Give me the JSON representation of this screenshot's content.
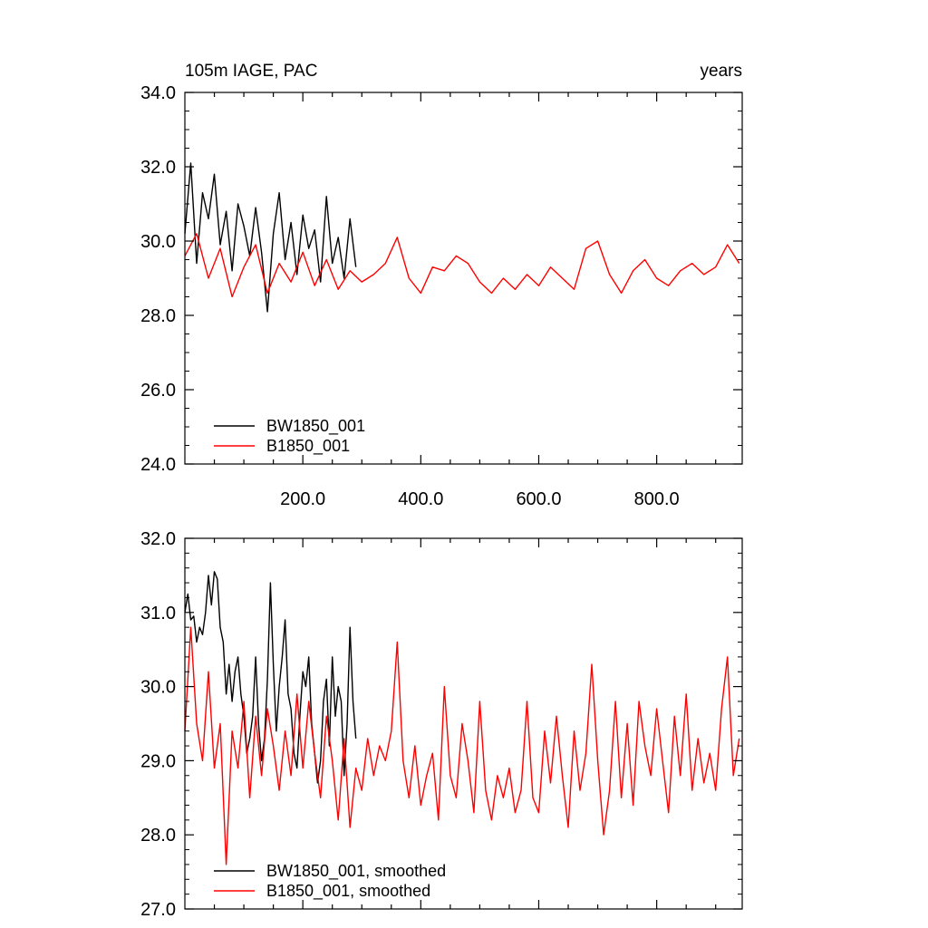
{
  "chart_data": [
    {
      "type": "line",
      "title": "105m IAGE, PAC",
      "xlabel": "years",
      "ylabel": "",
      "xlim": [
        0,
        945
      ],
      "ylim": [
        24.0,
        34.0
      ],
      "yticks": [
        "34.0",
        "32.0",
        "30.0",
        "28.0",
        "26.0",
        "24.0"
      ],
      "xticks": [
        "200.0",
        "400.0",
        "600.0",
        "800.0"
      ],
      "legend_position": "bottom-left",
      "series": [
        {
          "name": "BW1850_001",
          "color": "#000000",
          "x": [
            0,
            10,
            20,
            30,
            40,
            50,
            60,
            70,
            80,
            90,
            100,
            110,
            120,
            130,
            140,
            150,
            160,
            170,
            180,
            190,
            200,
            210,
            220,
            230,
            240,
            250,
            260,
            270,
            280,
            290
          ],
          "y": [
            30.2,
            32.1,
            29.4,
            31.3,
            30.6,
            31.8,
            29.9,
            30.8,
            29.2,
            31.0,
            30.4,
            29.6,
            30.9,
            29.7,
            28.1,
            30.2,
            31.3,
            29.5,
            30.5,
            29.1,
            30.7,
            29.8,
            30.3,
            28.9,
            31.2,
            29.4,
            30.1,
            29.0,
            30.6,
            29.3
          ]
        },
        {
          "name": "B1850_001",
          "color": "#ff0000",
          "x": [
            0,
            20,
            40,
            60,
            80,
            100,
            120,
            140,
            160,
            180,
            200,
            220,
            240,
            260,
            280,
            300,
            320,
            340,
            360,
            380,
            400,
            420,
            440,
            460,
            480,
            500,
            520,
            540,
            560,
            580,
            600,
            620,
            640,
            660,
            680,
            700,
            720,
            740,
            760,
            780,
            800,
            820,
            840,
            860,
            880,
            900,
            920,
            940
          ],
          "y": [
            29.6,
            30.2,
            29.0,
            29.8,
            28.5,
            29.3,
            29.9,
            28.6,
            29.4,
            28.9,
            29.7,
            28.8,
            29.5,
            28.7,
            29.2,
            28.9,
            29.1,
            29.4,
            30.1,
            29.0,
            28.6,
            29.3,
            29.2,
            29.6,
            29.4,
            28.9,
            28.6,
            29.0,
            28.7,
            29.1,
            28.8,
            29.3,
            29.0,
            28.7,
            29.8,
            30.0,
            29.1,
            28.6,
            29.2,
            29.5,
            29.0,
            28.8,
            29.2,
            29.4,
            29.1,
            29.3,
            29.9,
            29.4
          ]
        }
      ]
    },
    {
      "type": "line",
      "title": "",
      "xlabel": "",
      "ylabel": "",
      "xlim": [
        0,
        945
      ],
      "ylim": [
        27.0,
        32.0
      ],
      "yticks": [
        "32.0",
        "31.0",
        "30.0",
        "29.0",
        "28.0",
        "27.0"
      ],
      "legend_position": "bottom-left",
      "series": [
        {
          "name": "BW1850_001, smoothed",
          "color": "#000000",
          "x": [
            0,
            5,
            10,
            15,
            20,
            25,
            30,
            35,
            40,
            45,
            50,
            55,
            60,
            65,
            70,
            75,
            80,
            85,
            90,
            95,
            100,
            105,
            110,
            115,
            120,
            125,
            130,
            135,
            140,
            145,
            150,
            155,
            160,
            165,
            170,
            175,
            180,
            185,
            190,
            195,
            200,
            205,
            210,
            215,
            220,
            225,
            230,
            235,
            240,
            245,
            250,
            255,
            260,
            265,
            270,
            275,
            280,
            285,
            290
          ],
          "y": [
            31.0,
            31.25,
            30.9,
            30.95,
            30.6,
            30.8,
            30.7,
            31.0,
            31.5,
            31.1,
            31.55,
            31.45,
            30.8,
            30.6,
            29.9,
            30.3,
            29.8,
            30.2,
            30.4,
            29.9,
            29.6,
            29.1,
            29.3,
            29.6,
            30.4,
            29.5,
            29.0,
            29.3,
            30.1,
            31.4,
            30.3,
            29.4,
            30.0,
            30.4,
            30.9,
            29.9,
            29.7,
            29.1,
            28.9,
            29.6,
            30.2,
            30.0,
            30.4,
            29.5,
            29.1,
            28.7,
            29.0,
            29.8,
            30.1,
            29.2,
            30.4,
            29.6,
            30.0,
            29.8,
            28.8,
            29.5,
            30.8,
            29.8,
            29.3
          ]
        },
        {
          "name": "B1850_001, smoothed",
          "color": "#ff0000",
          "x": [
            0,
            10,
            20,
            30,
            40,
            50,
            60,
            70,
            80,
            90,
            100,
            110,
            120,
            130,
            140,
            150,
            160,
            170,
            180,
            190,
            200,
            210,
            220,
            230,
            240,
            250,
            260,
            270,
            280,
            290,
            300,
            310,
            320,
            330,
            340,
            350,
            360,
            370,
            380,
            390,
            400,
            410,
            420,
            430,
            440,
            450,
            460,
            470,
            480,
            490,
            500,
            510,
            520,
            530,
            540,
            550,
            560,
            570,
            580,
            590,
            600,
            610,
            620,
            630,
            640,
            650,
            660,
            670,
            680,
            690,
            700,
            710,
            720,
            730,
            740,
            750,
            760,
            770,
            780,
            790,
            800,
            810,
            820,
            830,
            840,
            850,
            860,
            870,
            880,
            890,
            900,
            910,
            920,
            930,
            940
          ],
          "y": [
            29.4,
            30.8,
            29.5,
            29.0,
            30.2,
            28.9,
            29.5,
            27.6,
            29.4,
            28.9,
            29.8,
            28.5,
            29.6,
            28.8,
            29.7,
            29.2,
            28.6,
            29.4,
            28.8,
            29.9,
            28.9,
            29.8,
            29.1,
            28.5,
            29.6,
            29.0,
            28.2,
            29.3,
            28.1,
            28.9,
            28.6,
            29.3,
            28.8,
            29.2,
            29.0,
            29.4,
            30.6,
            29.0,
            28.5,
            29.2,
            28.4,
            28.8,
            29.1,
            28.2,
            30.0,
            28.8,
            28.5,
            29.5,
            29.0,
            28.3,
            29.8,
            28.6,
            28.2,
            28.8,
            28.5,
            28.9,
            28.3,
            28.6,
            29.8,
            28.5,
            28.3,
            29.4,
            28.7,
            29.6,
            28.8,
            28.1,
            29.4,
            28.6,
            29.1,
            30.3,
            29.0,
            28.0,
            28.6,
            29.8,
            28.5,
            29.5,
            28.4,
            29.8,
            29.2,
            28.8,
            29.7,
            29.0,
            28.3,
            29.6,
            28.8,
            29.9,
            28.6,
            29.3,
            28.7,
            29.1,
            28.6,
            29.7,
            30.4,
            28.8,
            29.3
          ]
        }
      ]
    }
  ]
}
